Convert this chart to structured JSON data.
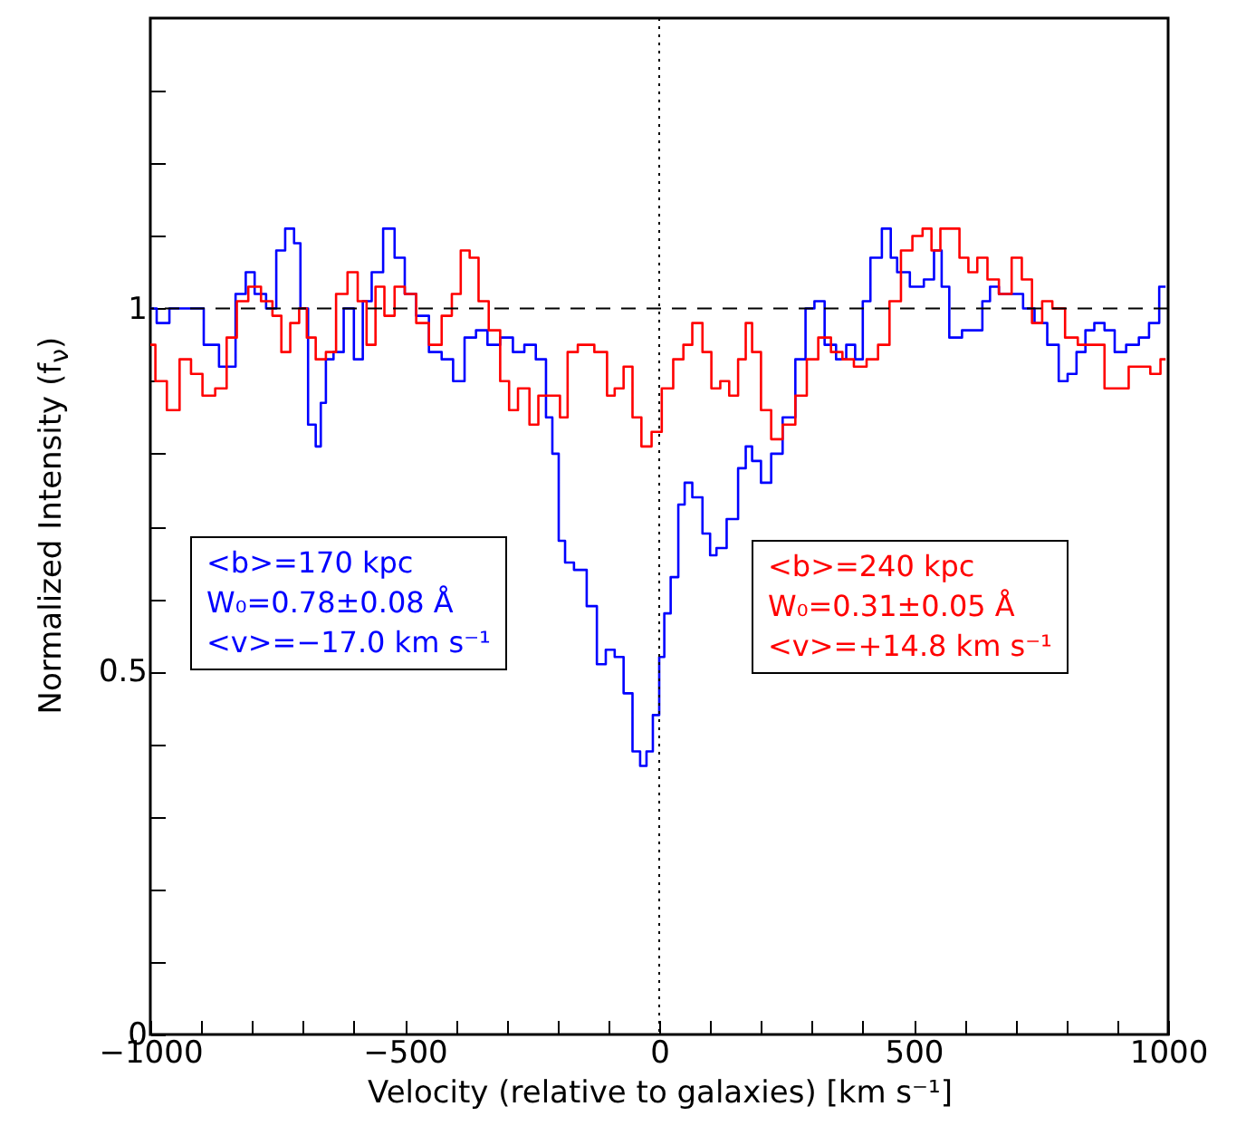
{
  "chart_data": {
    "type": "step",
    "xlabel": "Velocity (relative to galaxies) [km s⁻¹]",
    "ylabel": "Normalized Intensity (f$_{ν}$)",
    "xlim": [
      -1000,
      1000
    ],
    "ylim": [
      0,
      1.4
    ],
    "xticks": [
      -1000,
      {
        "value": -900,
        "label": null
      },
      {
        "value": -800,
        "label": null
      },
      {
        "value": -700,
        "label": null
      },
      {
        "value": -600,
        "label": null
      },
      -500,
      {
        "value": -400,
        "label": null
      },
      {
        "value": -300,
        "label": null
      },
      {
        "value": -200,
        "label": null
      },
      {
        "value": -100,
        "label": null
      },
      0,
      {
        "value": 100,
        "label": null
      },
      {
        "value": 200,
        "label": null
      },
      {
        "value": 300,
        "label": null
      },
      {
        "value": 400,
        "label": null
      },
      500,
      {
        "value": 600,
        "label": null
      },
      {
        "value": 700,
        "label": null
      },
      {
        "value": 800,
        "label": null
      },
      {
        "value": 900,
        "label": null
      },
      1000
    ],
    "yticks": [
      0,
      {
        "value": 0.1,
        "label": null
      },
      {
        "value": 0.2,
        "label": null
      },
      {
        "value": 0.3,
        "label": null
      },
      {
        "value": 0.4,
        "label": null
      },
      0.5,
      {
        "value": 0.6,
        "label": null
      },
      {
        "value": 0.7,
        "label": null
      },
      {
        "value": 0.8,
        "label": null
      },
      {
        "value": 0.9,
        "label": null
      },
      1,
      {
        "value": 1.1,
        "label": null
      },
      {
        "value": 1.2,
        "label": null
      },
      {
        "value": 1.3,
        "label": null
      }
    ],
    "series": [
      {
        "color": "#0000ff",
        "x": [
          -1000,
          -975,
          -950,
          -905,
          -885,
          -845,
          -820,
          -805,
          -785,
          -760,
          -745,
          -725,
          -710,
          -700,
          -680,
          -670,
          -660,
          -650,
          -630,
          -610,
          -590,
          -575,
          -555,
          -530,
          -510,
          -490,
          -465,
          -440,
          -415,
          -395,
          -370,
          -350,
          -325,
          -300,
          -275,
          -255,
          -230,
          -215,
          -205,
          -190,
          -180,
          -155,
          -130,
          -115,
          -95,
          -80,
          -60,
          -45,
          -30,
          -20,
          -5,
          5,
          15,
          30,
          45,
          55,
          75,
          95,
          105,
          120,
          145,
          165,
          175,
          190,
          210,
          230,
          255,
          280,
          295,
          315,
          335,
          360,
          375,
          395,
          405,
          425,
          450,
          460,
          475,
          510,
          530,
          550,
          560,
          580,
          610,
          625,
          645,
          655,
          680,
          705,
          725,
          750,
          775,
          795,
          810,
          830,
          845,
          865,
          885,
          905,
          930,
          955,
          970,
          995
        ],
        "values": [
          1.0,
          0.98,
          1.0,
          1.0,
          0.95,
          0.92,
          1.02,
          1.05,
          1.02,
          1.0,
          1.08,
          1.11,
          1.09,
          1.0,
          0.84,
          0.81,
          0.87,
          0.93,
          0.94,
          1.0,
          0.93,
          1.01,
          1.05,
          1.11,
          1.07,
          1.02,
          0.99,
          0.94,
          0.93,
          0.9,
          0.96,
          0.97,
          0.95,
          0.96,
          0.94,
          0.95,
          0.93,
          0.85,
          0.8,
          0.68,
          0.65,
          0.64,
          0.59,
          0.51,
          0.53,
          0.52,
          0.47,
          0.39,
          0.37,
          0.39,
          0.44,
          0.52,
          0.58,
          0.63,
          0.73,
          0.76,
          0.74,
          0.69,
          0.66,
          0.67,
          0.71,
          0.78,
          0.81,
          0.79,
          0.76,
          0.8,
          0.85,
          0.93,
          1.0,
          1.01,
          0.95,
          0.93,
          0.95,
          0.93,
          1.01,
          1.07,
          1.11,
          1.07,
          1.05,
          1.03,
          1.04,
          1.08,
          1.03,
          0.96,
          0.97,
          0.97,
          1.01,
          1.03,
          1.02,
          1.02,
          1.0,
          0.98,
          0.95,
          0.9,
          0.91,
          0.94,
          0.97,
          0.98,
          0.97,
          0.94,
          0.95,
          0.96,
          0.98,
          1.03
        ]
      },
      {
        "color": "#ff0000",
        "x": [
          -1000,
          -980,
          -955,
          -930,
          -910,
          -885,
          -860,
          -840,
          -820,
          -795,
          -770,
          -750,
          -735,
          -715,
          -700,
          -685,
          -665,
          -645,
          -625,
          -600,
          -585,
          -565,
          -550,
          -530,
          -510,
          -490,
          -465,
          -440,
          -415,
          -400,
          -380,
          -365,
          -345,
          -325,
          -300,
          -290,
          -265,
          -245,
          -230,
          -205,
          -185,
          -175,
          -145,
          -110,
          -95,
          -80,
          -60,
          -45,
          -25,
          -5,
          15,
          40,
          55,
          75,
          95,
          110,
          130,
          145,
          165,
          175,
          190,
          210,
          230,
          255,
          280,
          300,
          325,
          350,
          370,
          395,
          420,
          440,
          465,
          485,
          510,
          525,
          545,
          560,
          580,
          600,
          615,
          635,
          655,
          680,
          705,
          720,
          745,
          760,
          785,
          810,
          835,
          865,
          885,
          910,
          935,
          955,
          975,
          995
        ],
        "values": [
          0.95,
          0.9,
          0.86,
          0.93,
          0.91,
          0.88,
          0.89,
          0.96,
          1.01,
          1.03,
          1.01,
          0.99,
          0.94,
          0.98,
          1.0,
          0.96,
          0.93,
          0.94,
          1.02,
          1.05,
          1.01,
          0.95,
          1.03,
          0.99,
          1.03,
          1.02,
          0.98,
          0.95,
          0.99,
          1.02,
          1.08,
          1.07,
          1.01,
          0.97,
          0.9,
          0.86,
          0.89,
          0.84,
          0.88,
          0.88,
          0.85,
          0.94,
          0.95,
          0.94,
          0.88,
          0.89,
          0.92,
          0.85,
          0.81,
          0.83,
          0.89,
          0.93,
          0.95,
          0.98,
          0.94,
          0.89,
          0.9,
          0.88,
          0.93,
          0.98,
          0.94,
          0.86,
          0.82,
          0.84,
          0.88,
          0.93,
          0.96,
          0.94,
          0.93,
          0.92,
          0.93,
          0.95,
          1.01,
          1.08,
          1.1,
          1.11,
          1.08,
          1.11,
          1.11,
          1.07,
          1.05,
          1.07,
          1.04,
          1.02,
          1.07,
          1.04,
          0.98,
          1.01,
          1.0,
          0.96,
          0.95,
          0.95,
          0.89,
          0.89,
          0.92,
          0.92,
          0.91,
          0.93
        ]
      }
    ],
    "ref_lines": [
      {
        "axis": "y",
        "value": 1,
        "color": "#000000",
        "line_style": "dashed"
      },
      {
        "axis": "x",
        "value": 0,
        "color": "#000000",
        "line_style": "dotted"
      }
    ],
    "annotations": [
      "<b>=170 kpc",
      "W₀=0.78±0.08 Å",
      "<v>=−17.0 km s⁻¹",
      "<b>=240 kpc",
      "W₀=0.31±0.05 Å",
      "<v>=+14.8 km s⁻¹"
    ],
    "grid": false
  }
}
